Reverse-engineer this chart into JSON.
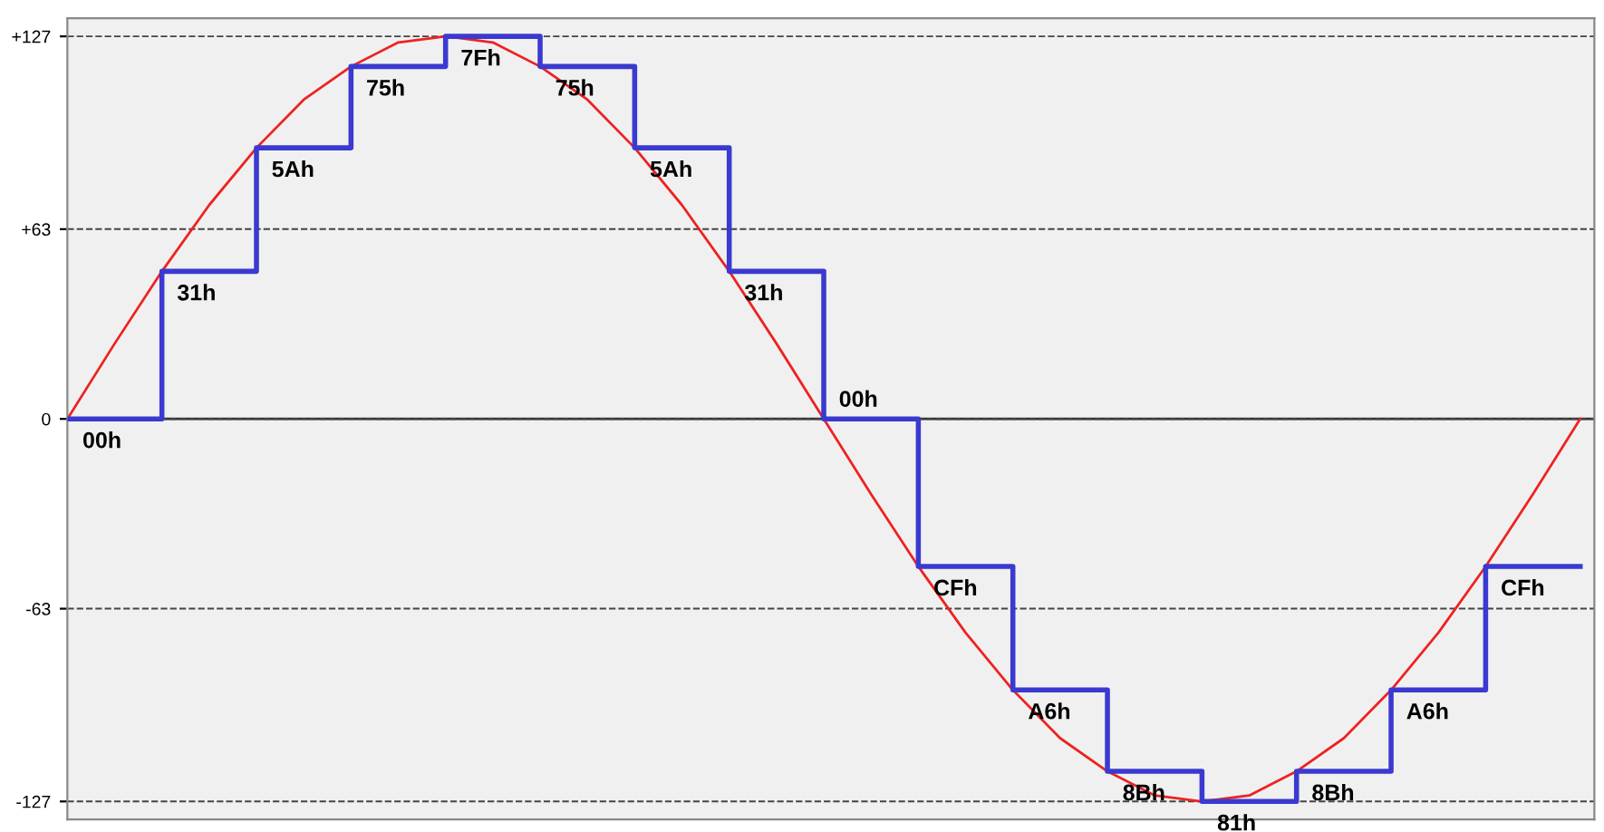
{
  "chart_data": {
    "type": "step",
    "categories": [
      null,
      null,
      null,
      null,
      null,
      null,
      null,
      null,
      null,
      null,
      null,
      null,
      null,
      null,
      null,
      null,
      null,
      null,
      null,
      null,
      null,
      null,
      null,
      null,
      null,
      null,
      null,
      null,
      null,
      null,
      null,
      null,
      null
    ],
    "series": [
      {
        "color": "#3a3ad0",
        "values": [
          0,
          0,
          49,
          49,
          90,
          90,
          117,
          117,
          127,
          127,
          117,
          117,
          90,
          90,
          49,
          49,
          0,
          0,
          -49,
          -49,
          -90,
          -90,
          -117,
          -117,
          -127,
          -127,
          -117,
          -117,
          -90,
          -90,
          -49,
          -49,
          -49
        ]
      },
      {
        "type": "line",
        "color": "#ee2222",
        "values": [
          0,
          25,
          49,
          71,
          90,
          106,
          117,
          125,
          127,
          125,
          117,
          106,
          90,
          71,
          49,
          25,
          0,
          -25,
          -49,
          -71,
          -90,
          -106,
          -117,
          -125,
          -127,
          -125,
          -117,
          -106,
          -90,
          -71,
          -49,
          -25,
          0
        ]
      }
    ],
    "annotations": [
      "00h",
      "31h",
      "5Ah",
      "75h",
      "7Fh",
      "75h",
      "5Ah",
      "31h",
      "00h",
      "CFh",
      "A6h",
      "8Bh",
      "81h",
      "8Bh",
      "A6h",
      "CFh"
    ],
    "ylim": [
      -133,
      133
    ],
    "yticks": [
      {
        "value": 127,
        "label": "+127"
      },
      {
        "value": 63,
        "label": "+63"
      },
      {
        "value": 0,
        "label": "0"
      },
      {
        "value": -63,
        "label": "-63"
      },
      {
        "value": -127,
        "label": "-127"
      }
    ],
    "grid": "y",
    "line_style": "solid",
    "marker": "none",
    "ref_lines": [
      {
        "axis": "y",
        "value": 0,
        "color": "#333333",
        "line_style": "solid"
      }
    ]
  }
}
